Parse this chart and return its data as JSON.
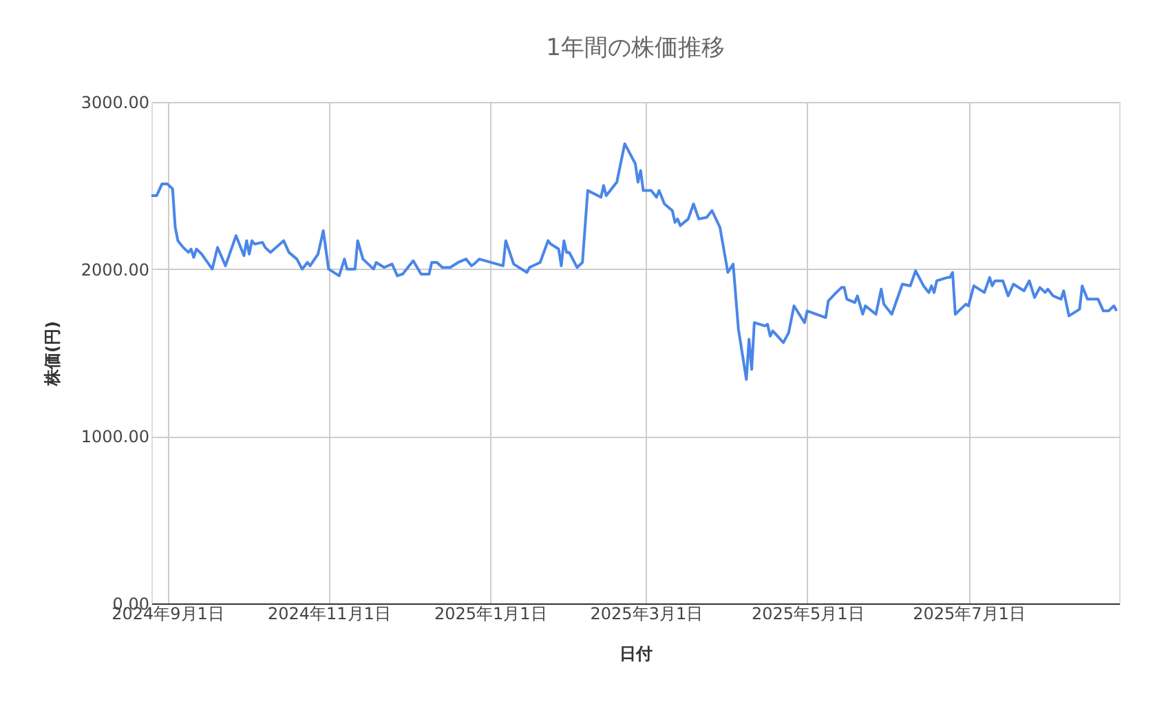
{
  "chart_data": {
    "type": "line",
    "title": "1年間の株価推移",
    "xlabel": "日付",
    "ylabel": "株価(円)",
    "x": [
      "2024-08-26",
      "2024-08-28",
      "2024-08-30",
      "2024-09-01",
      "2024-09-03",
      "2024-09-04",
      "2024-09-05",
      "2024-09-07",
      "2024-09-09",
      "2024-09-10",
      "2024-09-11",
      "2024-09-12",
      "2024-09-14",
      "2024-09-18",
      "2024-09-20",
      "2024-09-23",
      "2024-09-27",
      "2024-09-30",
      "2024-10-01",
      "2024-10-02",
      "2024-10-03",
      "2024-10-04",
      "2024-10-07",
      "2024-10-08",
      "2024-10-10",
      "2024-10-15",
      "2024-10-17",
      "2024-10-20",
      "2024-10-22",
      "2024-10-24",
      "2024-10-25",
      "2024-10-28",
      "2024-10-30",
      "2024-11-01",
      "2024-11-05",
      "2024-11-07",
      "2024-11-08",
      "2024-11-11",
      "2024-11-12",
      "2024-11-14",
      "2024-11-18",
      "2024-11-19",
      "2024-11-22",
      "2024-11-25",
      "2024-11-27",
      "2024-11-29",
      "2024-12-03",
      "2024-12-06",
      "2024-12-09",
      "2024-12-10",
      "2024-12-12",
      "2024-12-14",
      "2024-12-17",
      "2024-12-20",
      "2024-12-23",
      "2024-12-25",
      "2024-12-26",
      "2024-12-28",
      "2025-01-06",
      "2025-01-07",
      "2025-01-10",
      "2025-01-15",
      "2025-01-16",
      "2025-01-20",
      "2025-01-23",
      "2025-01-24",
      "2025-01-27",
      "2025-01-28",
      "2025-01-29",
      "2025-01-30",
      "2025-01-31",
      "2025-02-03",
      "2025-02-05",
      "2025-02-07",
      "2025-02-12",
      "2025-02-13",
      "2025-02-14",
      "2025-02-18",
      "2025-02-21",
      "2025-02-25",
      "2025-02-26",
      "2025-02-27",
      "2025-02-28",
      "2025-03-03",
      "2025-03-05",
      "2025-03-06",
      "2025-03-08",
      "2025-03-11",
      "2025-03-12",
      "2025-03-13",
      "2025-03-14",
      "2025-03-17",
      "2025-03-19",
      "2025-03-21",
      "2025-03-24",
      "2025-03-26",
      "2025-03-29",
      "2025-04-01",
      "2025-04-03",
      "2025-04-05",
      "2025-04-08",
      "2025-04-09",
      "2025-04-10",
      "2025-04-11",
      "2025-04-15",
      "2025-04-16",
      "2025-04-17",
      "2025-04-18",
      "2025-04-22",
      "2025-04-24",
      "2025-04-26",
      "2025-04-30",
      "2025-05-01",
      "2025-05-08",
      "2025-05-09",
      "2025-05-12",
      "2025-05-14",
      "2025-05-15",
      "2025-05-16",
      "2025-05-19",
      "2025-05-20",
      "2025-05-22",
      "2025-05-23",
      "2025-05-27",
      "2025-05-29",
      "2025-05-30",
      "2025-06-02",
      "2025-06-06",
      "2025-06-09",
      "2025-06-11",
      "2025-06-14",
      "2025-06-16",
      "2025-06-17",
      "2025-06-18",
      "2025-06-19",
      "2025-06-23",
      "2025-06-24",
      "2025-06-25",
      "2025-06-26",
      "2025-06-28",
      "2025-06-30",
      "2025-07-01",
      "2025-07-03",
      "2025-07-07",
      "2025-07-09",
      "2025-07-10",
      "2025-07-11",
      "2025-07-14",
      "2025-07-16",
      "2025-07-18",
      "2025-07-22",
      "2025-07-24",
      "2025-07-26",
      "2025-07-28",
      "2025-07-30",
      "2025-07-31",
      "2025-08-02",
      "2025-08-05",
      "2025-08-06",
      "2025-08-08",
      "2025-08-12",
      "2025-08-13",
      "2025-08-15",
      "2025-08-19",
      "2025-08-21",
      "2025-08-23",
      "2025-08-25",
      "2025-08-26"
    ],
    "series": [
      {
        "color": "#4a86e8",
        "values": [
          2440,
          2440,
          2510,
          2510,
          2480,
          2250,
          2170,
          2130,
          2100,
          2120,
          2070,
          2120,
          2090,
          2000,
          2130,
          2020,
          2200,
          2080,
          2170,
          2090,
          2170,
          2150,
          2160,
          2130,
          2100,
          2170,
          2100,
          2060,
          2000,
          2040,
          2020,
          2090,
          2230,
          2000,
          1960,
          2060,
          2000,
          2000,
          2170,
          2060,
          2000,
          2040,
          2010,
          2030,
          1960,
          1970,
          2050,
          1970,
          1970,
          2040,
          2040,
          2010,
          2010,
          2040,
          2060,
          2020,
          2030,
          2060,
          2020,
          2170,
          2030,
          1980,
          2010,
          2040,
          2170,
          2150,
          2120,
          2020,
          2170,
          2100,
          2100,
          2010,
          2040,
          2470,
          2430,
          2500,
          2440,
          2520,
          2750,
          2630,
          2520,
          2590,
          2470,
          2470,
          2430,
          2470,
          2390,
          2350,
          2280,
          2300,
          2260,
          2300,
          2390,
          2300,
          2310,
          2350,
          2250,
          1980,
          2030,
          1640,
          1340,
          1580,
          1400,
          1680,
          1660,
          1670,
          1600,
          1630,
          1560,
          1620,
          1780,
          1680,
          1750,
          1710,
          1810,
          1860,
          1890,
          1890,
          1820,
          1800,
          1840,
          1730,
          1780,
          1730,
          1880,
          1790,
          1730,
          1910,
          1900,
          1990,
          1900,
          1860,
          1900,
          1860,
          1930,
          1950,
          1950,
          1980,
          1730,
          1760,
          1790,
          1780,
          1900,
          1860,
          1950,
          1900,
          1930,
          1930,
          1840,
          1910,
          1870,
          1930,
          1830,
          1890,
          1860,
          1880,
          1840,
          1820,
          1870,
          1720,
          1760,
          1900,
          1820,
          1820,
          1750,
          1750,
          1780,
          1750
        ]
      }
    ],
    "xlim": [
      "2024-08-26",
      "2025-08-27"
    ],
    "xticks": [
      {
        "value": "2024-09-01",
        "label": "2024年9月1日"
      },
      {
        "value": "2024-11-01",
        "label": "2024年11月1日"
      },
      {
        "value": "2025-01-01",
        "label": "2025年1月1日"
      },
      {
        "value": "2025-03-01",
        "label": "2025年3月1日"
      },
      {
        "value": "2025-05-01",
        "label": "2025年5月1日"
      },
      {
        "value": "2025-07-01",
        "label": "2025年7月1日"
      }
    ],
    "ylim": [
      0,
      3000
    ],
    "yticks": [
      {
        "value": 0,
        "label": "0.00"
      },
      {
        "value": 1000,
        "label": "1000.00"
      },
      {
        "value": 2000,
        "label": "2000.00"
      },
      {
        "value": 3000,
        "label": "3000.00"
      }
    ],
    "grid": true
  }
}
